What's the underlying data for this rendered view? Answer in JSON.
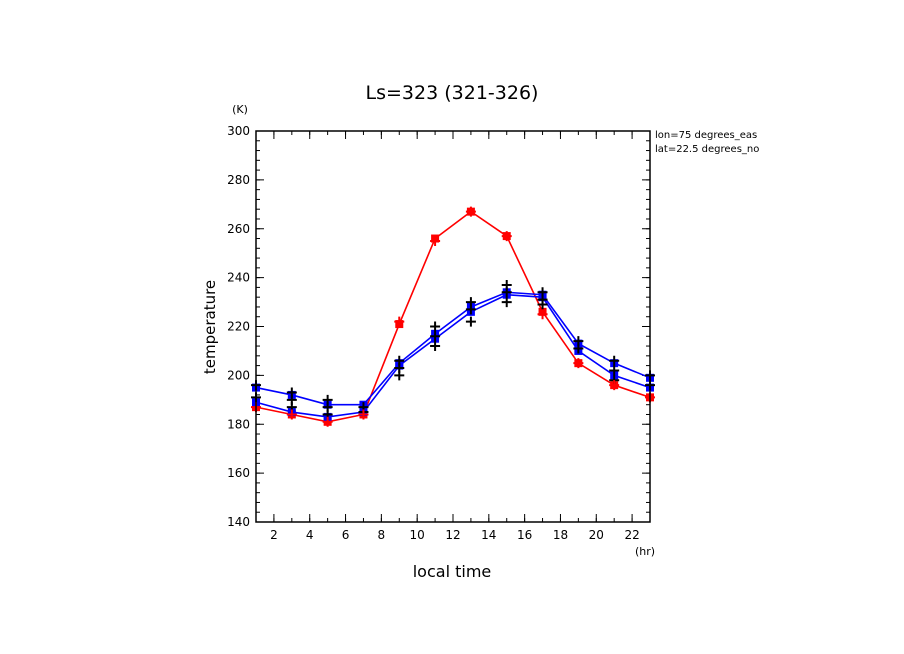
{
  "chart_data": {
    "type": "line",
    "title": "Ls=323 (321-326)",
    "xlabel": "local time",
    "ylabel": "temperature",
    "x_unit": "(hr)",
    "y_unit": "(K)",
    "xlim": [
      1,
      23
    ],
    "ylim": [
      140,
      300
    ],
    "x_ticks": [
      2,
      4,
      6,
      8,
      10,
      12,
      14,
      16,
      18,
      20,
      22
    ],
    "y_ticks": [
      140,
      160,
      180,
      200,
      220,
      240,
      260,
      280,
      300
    ],
    "annotations": [
      "lon=75 degrees_eas",
      "lat=22.5 degrees_no"
    ],
    "x": [
      1,
      3,
      5,
      7,
      9,
      11,
      13,
      15,
      17,
      19,
      21,
      23
    ],
    "series": [
      {
        "color": "#ff0000",
        "values": [
          187,
          184,
          181,
          184,
          221,
          256,
          267,
          257,
          226,
          205,
          196,
          191
        ]
      },
      {
        "color": "#0000ff",
        "values": [
          189,
          185,
          183,
          185,
          204,
          215,
          226,
          233,
          232,
          210,
          200,
          195
        ]
      },
      {
        "color": "#0000ff",
        "values": [
          195,
          192,
          188,
          188,
          205,
          217,
          228,
          234,
          233,
          213,
          205,
          199
        ]
      }
    ],
    "scatter_points": [
      {
        "color": "#000000",
        "x": 1,
        "y": 196
      },
      {
        "color": "#000000",
        "x": 1,
        "y": 191
      },
      {
        "color": "#000000",
        "x": 3,
        "y": 193
      },
      {
        "color": "#000000",
        "x": 3,
        "y": 190
      },
      {
        "color": "#000000",
        "x": 3,
        "y": 187
      },
      {
        "color": "#000000",
        "x": 5,
        "y": 190
      },
      {
        "color": "#000000",
        "x": 5,
        "y": 187
      },
      {
        "color": "#000000",
        "x": 5,
        "y": 184
      },
      {
        "color": "#000000",
        "x": 7,
        "y": 187
      },
      {
        "color": "#000000",
        "x": 7,
        "y": 185
      },
      {
        "color": "#000000",
        "x": 9,
        "y": 206
      },
      {
        "color": "#000000",
        "x": 9,
        "y": 203
      },
      {
        "color": "#000000",
        "x": 9,
        "y": 200
      },
      {
        "color": "#000000",
        "x": 11,
        "y": 220
      },
      {
        "color": "#000000",
        "x": 11,
        "y": 216
      },
      {
        "color": "#000000",
        "x": 11,
        "y": 212
      },
      {
        "color": "#000000",
        "x": 13,
        "y": 230
      },
      {
        "color": "#000000",
        "x": 13,
        "y": 227
      },
      {
        "color": "#000000",
        "x": 13,
        "y": 222
      },
      {
        "color": "#000000",
        "x": 15,
        "y": 237
      },
      {
        "color": "#000000",
        "x": 15,
        "y": 234
      },
      {
        "color": "#000000",
        "x": 15,
        "y": 230
      },
      {
        "color": "#000000",
        "x": 17,
        "y": 234
      },
      {
        "color": "#000000",
        "x": 17,
        "y": 231
      },
      {
        "color": "#000000",
        "x": 17,
        "y": 229
      },
      {
        "color": "#000000",
        "x": 19,
        "y": 214
      },
      {
        "color": "#000000",
        "x": 19,
        "y": 211
      },
      {
        "color": "#000000",
        "x": 21,
        "y": 206
      },
      {
        "color": "#000000",
        "x": 21,
        "y": 202
      },
      {
        "color": "#000000",
        "x": 21,
        "y": 198
      },
      {
        "color": "#000000",
        "x": 23,
        "y": 200
      },
      {
        "color": "#000000",
        "x": 23,
        "y": 196
      },
      {
        "color": "#ff0000",
        "x": 1,
        "y": 187
      },
      {
        "color": "#ff0000",
        "x": 3,
        "y": 184
      },
      {
        "color": "#ff0000",
        "x": 5,
        "y": 181
      },
      {
        "color": "#ff0000",
        "x": 7,
        "y": 184
      },
      {
        "color": "#ff0000",
        "x": 9,
        "y": 222
      },
      {
        "color": "#ff0000",
        "x": 11,
        "y": 255
      },
      {
        "color": "#ff0000",
        "x": 13,
        "y": 267
      },
      {
        "color": "#ff0000",
        "x": 15,
        "y": 257
      },
      {
        "color": "#ff0000",
        "x": 17,
        "y": 225
      },
      {
        "color": "#ff0000",
        "x": 19,
        "y": 205
      },
      {
        "color": "#ff0000",
        "x": 21,
        "y": 196
      },
      {
        "color": "#ff0000",
        "x": 23,
        "y": 191
      }
    ],
    "grid": false,
    "legend": "none"
  }
}
